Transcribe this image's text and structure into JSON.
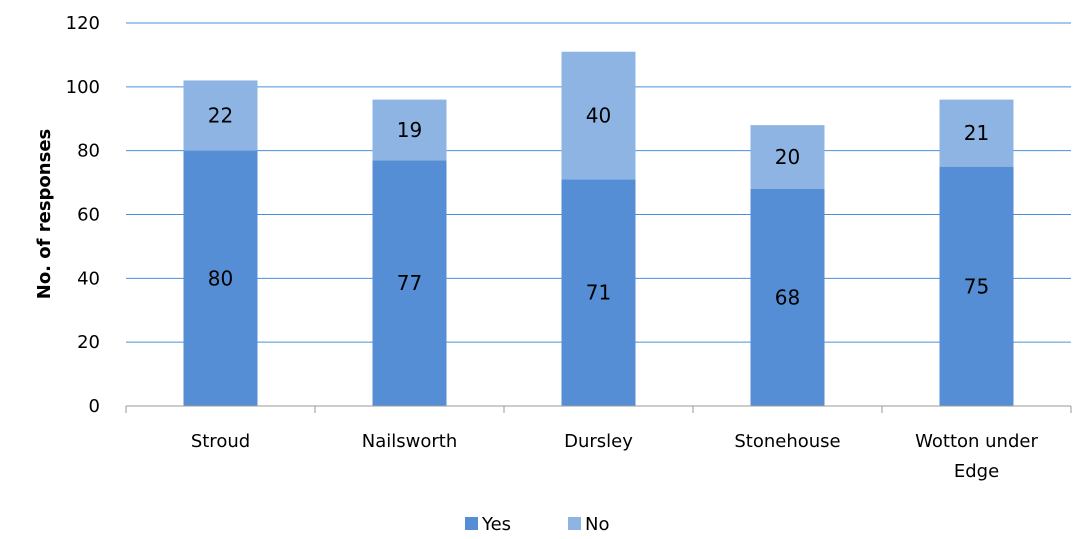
{
  "chart_data": {
    "type": "bar",
    "stacked": true,
    "categories": [
      "Stroud",
      "Nailsworth",
      "Dursley",
      "Stonehouse",
      "Wotton under Edge"
    ],
    "category_lines": [
      [
        "Stroud"
      ],
      [
        "Nailsworth"
      ],
      [
        "Dursley"
      ],
      [
        "Stonehouse"
      ],
      [
        "Wotton under",
        "Edge"
      ]
    ],
    "series": [
      {
        "name": "Yes",
        "values": [
          80,
          77,
          71,
          68,
          75
        ],
        "color": "#558ED5"
      },
      {
        "name": "No",
        "values": [
          22,
          19,
          40,
          20,
          21
        ],
        "color": "#8EB4E3"
      }
    ],
    "ylabel": "No. of responses",
    "xlabel": "",
    "ylim": [
      0,
      120
    ],
    "yticks": [
      0,
      20,
      40,
      60,
      80,
      100,
      120
    ],
    "grid": true,
    "gridline_color": "#4A90D9",
    "legend_position": "bottom"
  }
}
